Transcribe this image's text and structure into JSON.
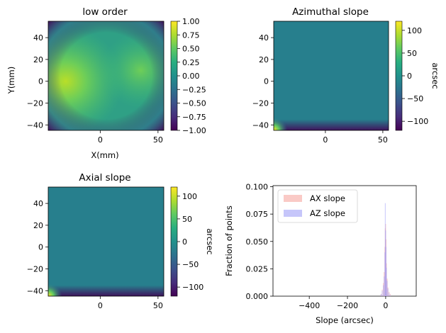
{
  "chart_data": [
    {
      "type": "heatmap",
      "title": "low order",
      "xlabel": "X(mm)",
      "ylabel": "Y(mm)",
      "x_ticks": [
        0,
        50
      ],
      "y_ticks": [
        40,
        20,
        0,
        -20,
        -40
      ],
      "xlim": [
        -45,
        55
      ],
      "ylim": [
        -45,
        55
      ],
      "colorbar": {
        "label": "",
        "ticks": [
          1.0,
          0.75,
          0.5,
          0.25,
          0.0,
          -0.25,
          -0.5,
          -0.75,
          -1.0
        ],
        "tick_labels": [
          "1.00",
          "0.75",
          "0.50",
          "0.25",
          "0.00",
          "−0.25",
          "−0.50",
          "−0.75",
          "−1.00"
        ],
        "range": [
          -1.0,
          1.0
        ],
        "colormap": "viridis"
      }
    },
    {
      "type": "heatmap",
      "title": "Azimuthal slope",
      "xlabel": "",
      "ylabel": "",
      "x_ticks": [
        0,
        50
      ],
      "y_ticks": [
        40,
        20,
        0,
        -20,
        -40
      ],
      "xlim": [
        -45,
        55
      ],
      "ylim": [
        -45,
        55
      ],
      "colorbar": {
        "label": "arcsec",
        "ticks": [
          100,
          50,
          0,
          -50,
          -100
        ],
        "tick_labels": [
          "100",
          "50",
          "0",
          "−50",
          "−100"
        ],
        "range": [
          -120,
          120
        ],
        "colormap": "viridis"
      }
    },
    {
      "type": "heatmap",
      "title": "Axial slope",
      "xlabel": "",
      "ylabel": "",
      "x_ticks": [
        0,
        50
      ],
      "y_ticks": [
        40,
        20,
        0,
        -20,
        -40
      ],
      "xlim": [
        -45,
        55
      ],
      "ylim": [
        -45,
        55
      ],
      "colorbar": {
        "label": "arcsec",
        "ticks": [
          100,
          50,
          0,
          -50,
          -100
        ],
        "tick_labels": [
          "100",
          "50",
          "0",
          "−50",
          "−100"
        ],
        "range": [
          -120,
          120
        ],
        "colormap": "viridis"
      }
    },
    {
      "type": "bar",
      "title": "",
      "xlabel": "Slope (arcsec)",
      "ylabel": "Fraction of points",
      "xlim": [
        -590,
        160
      ],
      "ylim": [
        0,
        0.101
      ],
      "x_ticks": [
        -400,
        -200,
        0
      ],
      "x_tick_labels": [
        "−400",
        "−200",
        "0"
      ],
      "y_ticks": [
        0.0,
        0.025,
        0.05,
        0.075,
        0.1
      ],
      "y_tick_labels": [
        "0.000",
        "0.025",
        "0.050",
        "0.075",
        "0.100"
      ],
      "legend": "upper-left",
      "series": [
        {
          "name": "AX slope",
          "color": "#f7a6a0",
          "x": [
            -24,
            -18,
            -12,
            -8,
            -4,
            -2,
            0,
            2,
            4,
            8,
            12,
            18,
            24
          ],
          "values": [
            0.002,
            0.006,
            0.012,
            0.022,
            0.045,
            0.062,
            0.066,
            0.052,
            0.03,
            0.016,
            0.008,
            0.004,
            0.002
          ]
        },
        {
          "name": "AZ slope",
          "color": "#a0a0f7",
          "x": [
            -24,
            -18,
            -12,
            -8,
            -4,
            -2,
            0,
            2,
            4,
            8,
            12,
            18,
            24
          ],
          "values": [
            0.002,
            0.005,
            0.01,
            0.018,
            0.04,
            0.085,
            0.06,
            0.045,
            0.026,
            0.014,
            0.007,
            0.003,
            0.001
          ]
        }
      ]
    }
  ]
}
